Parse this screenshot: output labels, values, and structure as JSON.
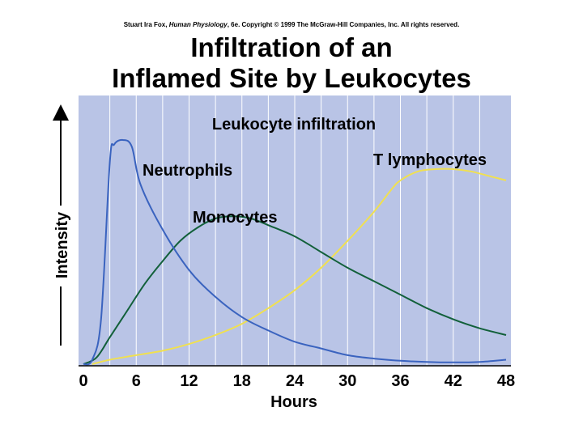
{
  "copyright": {
    "author": "Stuart Ira Fox, ",
    "book": "Human Physiology",
    "rest": ", 6e. Copyright © 1999 The McGraw-Hill Companies, Inc.  All rights reserved."
  },
  "title": {
    "line1": "Infiltration of an",
    "line2": "Inflamed Site by Leukocytes"
  },
  "colors": {
    "panel": "#b9c4e6",
    "grid": "#ffffff",
    "neutrophils": "#3a63bf",
    "monocytes": "#12603a",
    "t_lymphocytes": "#f0e050"
  },
  "chart_data": {
    "type": "line",
    "title": "Leukocyte infiltration",
    "xlabel": "Hours",
    "ylabel": "Intensity",
    "xlim": [
      0,
      48
    ],
    "ylim": [
      0,
      100
    ],
    "x_ticks": [
      "0",
      "6",
      "12",
      "18",
      "24",
      "30",
      "36",
      "42",
      "48"
    ],
    "y_ticks": [],
    "grid": true,
    "legend": "labels-on-curves",
    "series": [
      {
        "name": "Neutrophils",
        "points": [
          [
            0,
            0
          ],
          [
            1,
            2
          ],
          [
            2,
            20
          ],
          [
            3,
            90
          ],
          [
            3.5,
            98
          ],
          [
            4.5,
            100
          ],
          [
            5.5,
            97
          ],
          [
            6.5,
            80
          ],
          [
            9,
            60
          ],
          [
            12,
            42
          ],
          [
            15,
            30
          ],
          [
            18,
            21
          ],
          [
            21,
            15
          ],
          [
            24,
            10
          ],
          [
            27,
            7
          ],
          [
            30,
            4
          ],
          [
            33,
            2.5
          ],
          [
            36,
            1.5
          ],
          [
            39,
            1
          ],
          [
            42,
            0.8
          ],
          [
            45,
            1
          ],
          [
            48,
            2
          ]
        ]
      },
      {
        "name": "Monocytes",
        "points": [
          [
            0,
            0
          ],
          [
            1.5,
            3
          ],
          [
            3,
            12
          ],
          [
            5,
            24
          ],
          [
            7,
            36
          ],
          [
            9,
            46
          ],
          [
            11,
            55
          ],
          [
            13,
            61
          ],
          [
            15,
            65
          ],
          [
            17,
            66
          ],
          [
            19,
            65
          ],
          [
            21,
            62
          ],
          [
            24,
            57
          ],
          [
            27,
            50
          ],
          [
            30,
            43
          ],
          [
            33,
            37
          ],
          [
            36,
            31
          ],
          [
            39,
            25
          ],
          [
            42,
            20
          ],
          [
            45,
            16
          ],
          [
            48,
            13
          ]
        ]
      },
      {
        "name": "T lymphocytes",
        "points": [
          [
            1,
            0
          ],
          [
            3,
            2
          ],
          [
            6,
            4
          ],
          [
            9,
            6
          ],
          [
            12,
            9
          ],
          [
            15,
            13
          ],
          [
            18,
            18
          ],
          [
            21,
            25
          ],
          [
            24,
            33
          ],
          [
            27,
            43
          ],
          [
            30,
            55
          ],
          [
            33,
            68
          ],
          [
            35,
            78
          ],
          [
            36,
            82
          ],
          [
            38,
            86
          ],
          [
            40,
            87
          ],
          [
            42,
            87
          ],
          [
            44,
            86
          ],
          [
            46,
            84
          ],
          [
            48,
            82
          ]
        ]
      }
    ]
  }
}
